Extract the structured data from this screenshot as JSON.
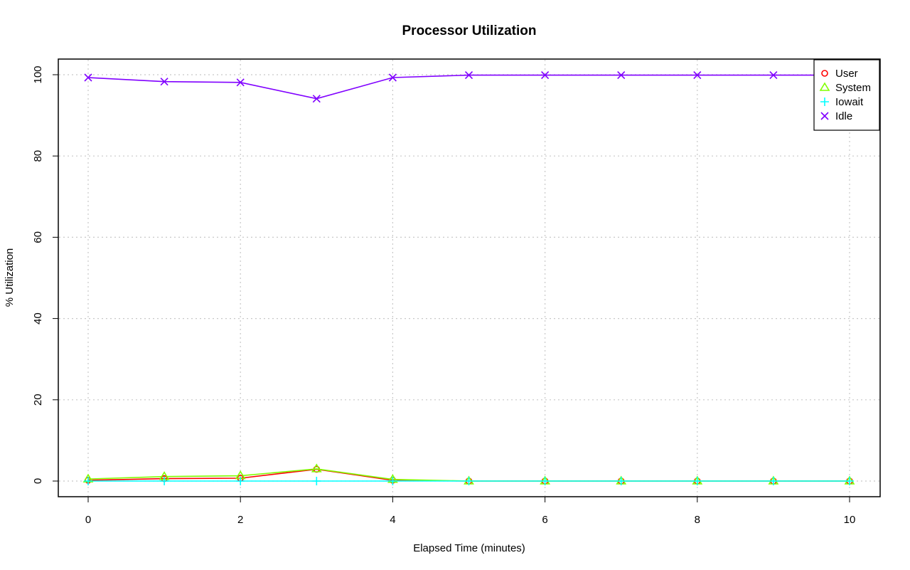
{
  "chart_data": {
    "type": "line",
    "title": "Processor Utilization",
    "xlabel": "Elapsed Time (minutes)",
    "ylabel": "% Utilization",
    "xlim": [
      0,
      10
    ],
    "ylim": [
      0,
      100
    ],
    "x_ticks": [
      0,
      2,
      4,
      6,
      8,
      10
    ],
    "y_ticks": [
      0,
      20,
      40,
      60,
      80,
      100
    ],
    "grid": true,
    "legend_position": "top-right",
    "x": [
      0,
      1,
      2,
      3,
      4,
      5,
      6,
      7,
      8,
      9,
      10
    ],
    "series": [
      {
        "name": "User",
        "color": "#ff0000",
        "marker": "circle",
        "values": [
          0.2,
          0.6,
          0.7,
          2.9,
          0.2,
          0.0,
          0.0,
          0.0,
          0.0,
          0.0,
          0.0
        ]
      },
      {
        "name": "System",
        "color": "#80ff00",
        "marker": "triangle",
        "values": [
          0.5,
          1.1,
          1.3,
          3.0,
          0.4,
          0.0,
          0.0,
          0.0,
          0.0,
          0.0,
          0.0
        ]
      },
      {
        "name": "Iowait",
        "color": "#00ffff",
        "marker": "plus",
        "values": [
          0.0,
          0.0,
          0.0,
          0.0,
          0.0,
          0.0,
          0.0,
          0.0,
          0.0,
          0.0,
          0.0
        ]
      },
      {
        "name": "Idle",
        "color": "#8000ff",
        "marker": "x",
        "values": [
          99.3,
          98.3,
          98.1,
          94.1,
          99.3,
          99.9,
          99.9,
          99.9,
          99.9,
          99.9,
          99.9
        ]
      }
    ]
  }
}
